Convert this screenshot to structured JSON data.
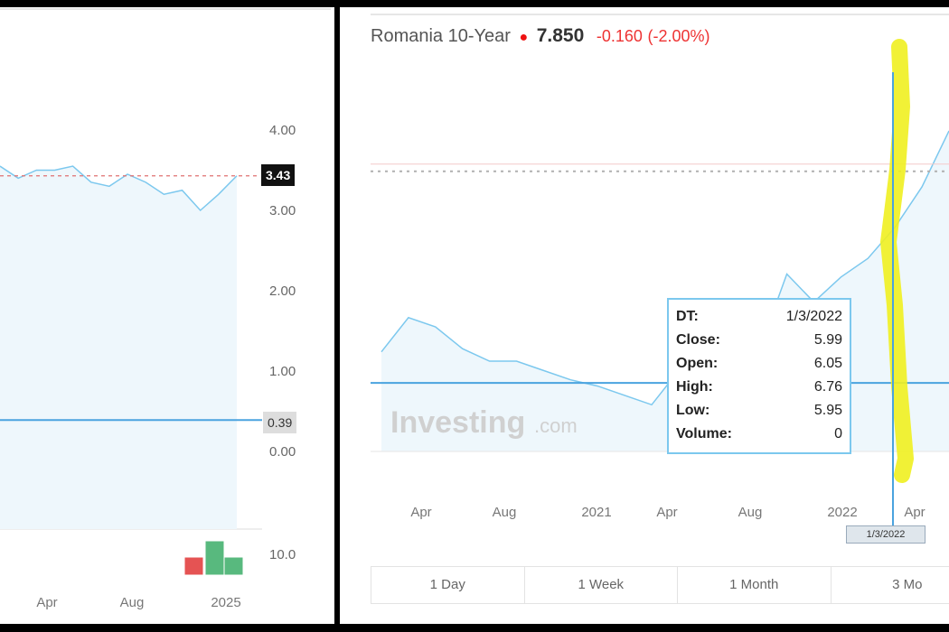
{
  "left_panel": {
    "last_price_label": "3.43",
    "ref_price_label": "0.39",
    "chart_data": {
      "type": "area",
      "y_ticks": [
        "4.00",
        "3.00",
        "2.00",
        "1.00",
        "0.00"
      ],
      "x_ticks": [
        "Apr",
        "Aug",
        "2025"
      ],
      "volume_scale_label": "10.0",
      "series": [
        {
          "values": [
            3.55,
            3.4,
            3.5,
            3.5,
            3.55,
            3.35,
            3.3,
            3.45,
            3.35,
            3.2,
            3.25,
            3.0,
            3.2,
            3.43
          ]
        }
      ],
      "reference_lines": {
        "last_price": 3.43,
        "horizontal_line": 0.39
      },
      "ylim": [
        0,
        4.0
      ],
      "volume_bars": [
        {
          "value": 2.0,
          "color": "#e55353"
        },
        {
          "value": 4.0,
          "color": "#58b97e"
        },
        {
          "value": 2.0,
          "color": "#58b97e"
        }
      ],
      "grid": false
    },
    "colors": {
      "line": "#7cc8ee",
      "fill": "#eef7fc",
      "ref_line": "#4aa3df",
      "last_line": "#e07070"
    }
  },
  "right_panel": {
    "header": {
      "title": "Romania 10-Year",
      "price": "7.850",
      "change": "-0.160",
      "change_pct": "(-2.00%)"
    },
    "watermark": {
      "brand": "Investing",
      "suffix": ".com"
    },
    "tooltip": {
      "rows": [
        {
          "key": "DT:",
          "value": "1/3/2022"
        },
        {
          "key": "Close:",
          "value": "5.99"
        },
        {
          "key": "Open:",
          "value": "6.05"
        },
        {
          "key": "High:",
          "value": "6.76"
        },
        {
          "key": "Low:",
          "value": "5.95"
        },
        {
          "key": "Volume:",
          "value": "0"
        }
      ]
    },
    "date_marker": "1/3/2022",
    "range_buttons": [
      "1 Day",
      "1 Week",
      "1 Month",
      "3 Mo"
    ],
    "chart_data": {
      "type": "area",
      "x_ticks": [
        "Apr",
        "Aug",
        "2021",
        "Apr",
        "Aug",
        "2022",
        "Apr"
      ],
      "series": [
        {
          "values": [
            3.2,
            4.3,
            4.0,
            3.3,
            2.9,
            2.9,
            2.6,
            2.3,
            2.1,
            1.8,
            1.5,
            2.6,
            1.9,
            2.2,
            3.3,
            5.7,
            4.8,
            5.6,
            6.2,
            7.2,
            8.5,
            10.3
          ]
        }
      ],
      "ylim": [
        0,
        10.5
      ],
      "reference_lines": {
        "dotted": 9.0,
        "horizontal_line": 2.2
      },
      "crosshair_date": "1/3/2022"
    },
    "colors": {
      "line": "#7cc8ee",
      "fill": "#eef7fc",
      "ref_line": "#4aa3df",
      "highlight": "#f0f020",
      "dotted": "#b0b0b0"
    }
  }
}
